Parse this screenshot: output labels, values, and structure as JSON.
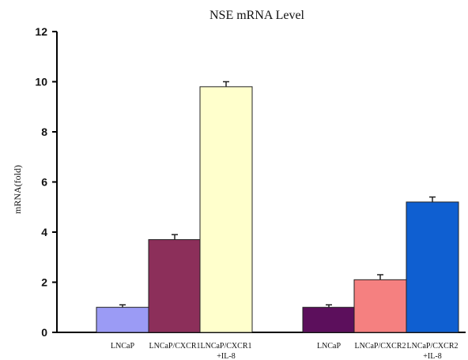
{
  "chart_data": {
    "type": "bar",
    "title": "NSE mRNA Level",
    "xlabel": "",
    "ylabel": "mRNA(fold)",
    "ylim": [
      0,
      12
    ],
    "yticks": [
      0,
      2,
      4,
      6,
      8,
      10,
      12
    ],
    "grid": false,
    "bars": [
      {
        "group": 1,
        "label_lines": [
          "LNCaP"
        ],
        "value": 1.0,
        "error": 0.1,
        "color": "#9b9bf5"
      },
      {
        "group": 1,
        "label_lines": [
          "LNCaP/CXCR1"
        ],
        "value": 3.7,
        "error": 0.2,
        "color": "#8c2f5a"
      },
      {
        "group": 1,
        "label_lines": [
          "LNCaP/CXCR1",
          "+IL-8"
        ],
        "value": 9.8,
        "error": 0.2,
        "color": "#ffffcc"
      },
      {
        "group": 2,
        "label_lines": [
          "LNCaP"
        ],
        "value": 1.0,
        "error": 0.1,
        "color": "#5c0f5c"
      },
      {
        "group": 2,
        "label_lines": [
          "LNCaP/CXCR2"
        ],
        "value": 2.1,
        "error": 0.2,
        "color": "#f58080"
      },
      {
        "group": 2,
        "label_lines": [
          "LNCaP/CXCR2",
          "+IL-8"
        ],
        "value": 5.2,
        "error": 0.2,
        "color": "#0f5fd1"
      }
    ]
  }
}
